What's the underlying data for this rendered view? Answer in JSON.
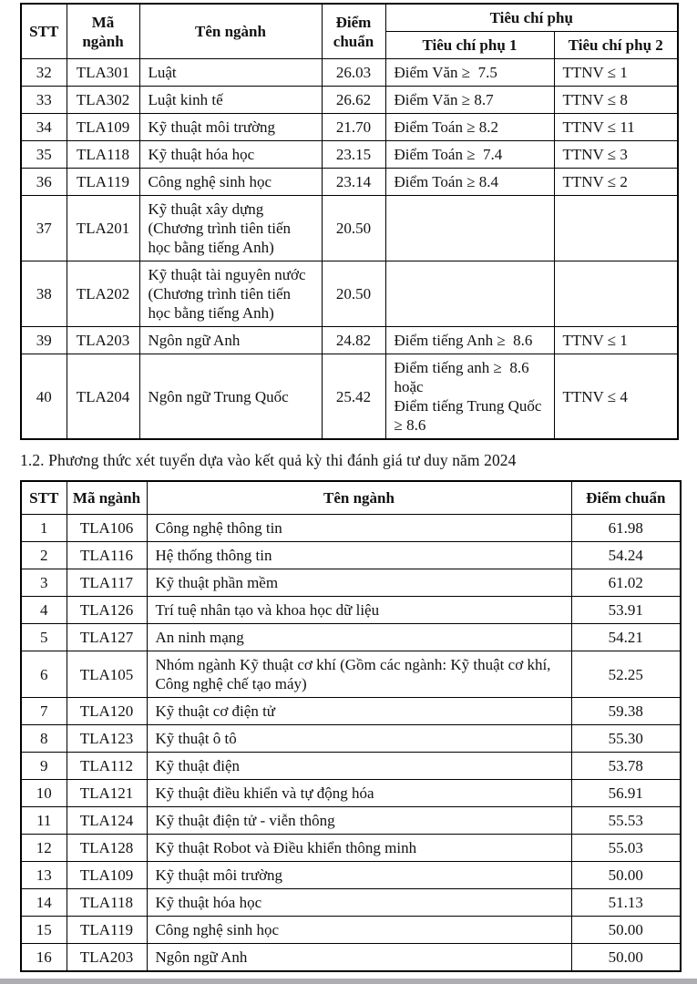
{
  "table1": {
    "headers": {
      "stt": "STT",
      "ma_nganh": "Mã ngành",
      "ten_nganh": "Tên ngành",
      "diem_chuan": "Điểm chuẩn",
      "tieu_chi_phu": "Tiêu chí phụ",
      "tieu_chi_phu_1": "Tiêu chí phụ 1",
      "tieu_chi_phu_2": "Tiêu chí phụ 2"
    },
    "rows": [
      {
        "stt": "32",
        "ma": "TLA301",
        "ten": "Luật",
        "diem": "26.03",
        "tc1": "Điểm Văn ≥  7.5",
        "tc2": "TTNV ≤ 1"
      },
      {
        "stt": "33",
        "ma": "TLA302",
        "ten": "Luật kinh tế",
        "diem": "26.62",
        "tc1": "Điểm Văn ≥ 8.7",
        "tc2": "TTNV ≤ 8"
      },
      {
        "stt": "34",
        "ma": "TLA109",
        "ten": "Kỹ thuật môi trường",
        "diem": "21.70",
        "tc1": "Điểm Toán ≥ 8.2",
        "tc2": "TTNV ≤ 11"
      },
      {
        "stt": "35",
        "ma": "TLA118",
        "ten": "Kỹ thuật hóa học",
        "diem": "23.15",
        "tc1": "Điểm Toán ≥  7.4",
        "tc2": "TTNV ≤ 3"
      },
      {
        "stt": "36",
        "ma": "TLA119",
        "ten": "Công nghệ sinh học",
        "diem": "23.14",
        "tc1": "Điểm Toán ≥ 8.4",
        "tc2": "TTNV ≤ 2"
      },
      {
        "stt": "37",
        "ma": "TLA201",
        "ten": "Kỹ thuật xây dựng (Chương trình tiên tiến học bằng tiếng Anh)",
        "diem": "20.50",
        "tc1": "",
        "tc2": ""
      },
      {
        "stt": "38",
        "ma": "TLA202",
        "ten": "Kỹ thuật tài nguyên nước (Chương trình tiên tiến học bằng tiếng Anh)",
        "diem": "20.50",
        "tc1": "",
        "tc2": ""
      },
      {
        "stt": "39",
        "ma": "TLA203",
        "ten": "Ngôn ngữ Anh",
        "diem": "24.82",
        "tc1": "Điểm tiếng Anh ≥  8.6",
        "tc2": "TTNV ≤ 1"
      },
      {
        "stt": "40",
        "ma": "TLA204",
        "ten": "Ngôn ngữ Trung Quốc",
        "diem": "25.42",
        "tc1": "Điểm tiếng anh ≥  8.6\nhoặc\nĐiểm tiếng Trung Quốc ≥ 8.6",
        "tc2": "TTNV ≤ 4"
      }
    ]
  },
  "section_heading": "1.2. Phương thức xét tuyển dựa vào kết quả kỳ thi đánh giá tư duy năm 2024",
  "table2": {
    "headers": {
      "stt": "STT",
      "ma_nganh": "Mã ngành",
      "ten_nganh": "Tên ngành",
      "diem_chuan": "Điểm chuẩn"
    },
    "rows": [
      {
        "stt": "1",
        "ma": "TLA106",
        "ten": "Công nghệ thông tin",
        "diem": "61.98"
      },
      {
        "stt": "2",
        "ma": "TLA116",
        "ten": "Hệ thống thông tin",
        "diem": "54.24"
      },
      {
        "stt": "3",
        "ma": "TLA117",
        "ten": "Kỹ thuật phần mềm",
        "diem": "61.02"
      },
      {
        "stt": "4",
        "ma": "TLA126",
        "ten": "Trí tuệ nhân tạo và khoa học dữ liệu",
        "diem": "53.91"
      },
      {
        "stt": "5",
        "ma": "TLA127",
        "ten": "An ninh mạng",
        "diem": "54.21"
      },
      {
        "stt": "6",
        "ma": "TLA105",
        "ten": "Nhóm ngành Kỹ thuật cơ khí (Gồm các ngành: Kỹ thuật cơ khí, Công nghệ chế tạo máy)",
        "diem": "52.25"
      },
      {
        "stt": "7",
        "ma": "TLA120",
        "ten": "Kỹ thuật cơ điện tử",
        "diem": "59.38"
      },
      {
        "stt": "8",
        "ma": "TLA123",
        "ten": "Kỹ thuật ô tô",
        "diem": "55.30"
      },
      {
        "stt": "9",
        "ma": "TLA112",
        "ten": "Kỹ thuật điện",
        "diem": "53.78"
      },
      {
        "stt": "10",
        "ma": "TLA121",
        "ten": "Kỹ thuật điều khiển và tự động hóa",
        "diem": "56.91"
      },
      {
        "stt": "11",
        "ma": "TLA124",
        "ten": "Kỹ thuật điện tử - viễn thông",
        "diem": "55.53"
      },
      {
        "stt": "12",
        "ma": "TLA128",
        "ten": "Kỹ thuật Robot và Điều khiển thông minh",
        "diem": "55.03"
      },
      {
        "stt": "13",
        "ma": "TLA109",
        "ten": "Kỹ thuật môi trường",
        "diem": "50.00"
      },
      {
        "stt": "14",
        "ma": "TLA118",
        "ten": "Kỹ thuật hóa học",
        "diem": "51.13"
      },
      {
        "stt": "15",
        "ma": "TLA119",
        "ten": "Công nghệ sinh học",
        "diem": "50.00"
      },
      {
        "stt": "16",
        "ma": "TLA203",
        "ten": "Ngôn ngữ Anh",
        "diem": "50.00"
      }
    ]
  },
  "colors": {
    "text": "#121212",
    "border": "#000000",
    "background": "#ffffff",
    "bottom_bar": "#aeaeb2"
  }
}
